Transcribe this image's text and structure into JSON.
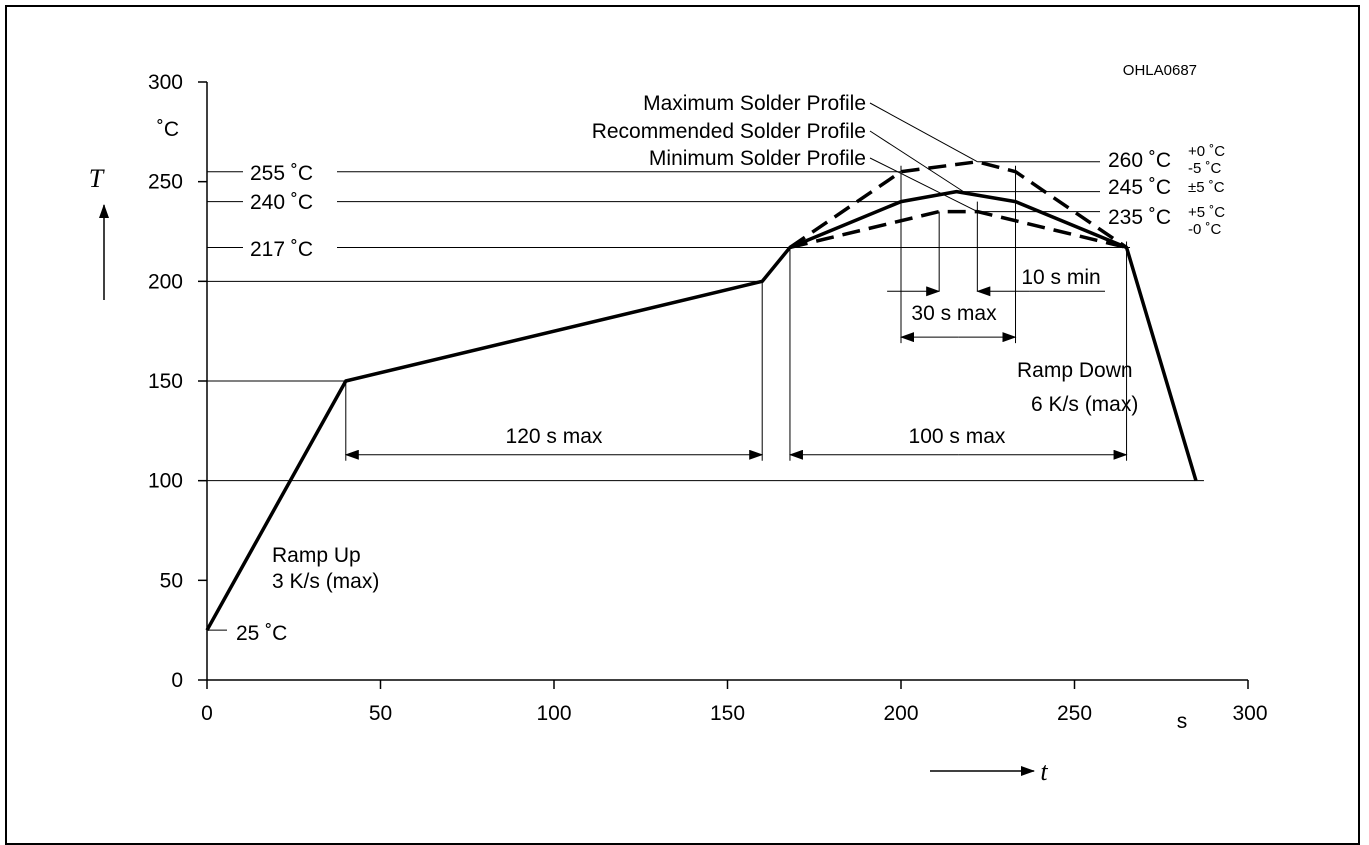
{
  "figure_code": "OHLA0687",
  "chart_data": {
    "type": "line",
    "title": "",
    "xlabel": "t",
    "ylabel": "T",
    "x_unit": "s",
    "y_unit": "˚C",
    "xlim": [
      0,
      300
    ],
    "ylim": [
      0,
      300
    ],
    "x_ticks": [
      0,
      50,
      100,
      150,
      200,
      250,
      300
    ],
    "y_ticks": [
      0,
      50,
      100,
      150,
      200,
      250,
      300
    ],
    "grid": false,
    "series": [
      {
        "name": "Recommended Solder Profile",
        "style": "solid",
        "x": [
          0,
          40,
          160,
          168,
          200,
          216,
          233,
          265,
          285
        ],
        "y": [
          25,
          150,
          200,
          217,
          240,
          245,
          240,
          217,
          100
        ]
      },
      {
        "name": "Maximum Solder Profile",
        "style": "dashed",
        "x": [
          168,
          200,
          222,
          233,
          265
        ],
        "y": [
          217,
          255,
          260,
          255,
          217
        ]
      },
      {
        "name": "Minimum Solder Profile",
        "style": "dashed",
        "x": [
          168,
          211,
          222,
          265
        ],
        "y": [
          217,
          235,
          235,
          217
        ]
      }
    ],
    "temperature_labels": {
      "t25": "25 ˚C",
      "t217": "217 ˚C",
      "t240": "240 ˚C",
      "t255": "255 ˚C",
      "t260": "260 ˚C",
      "t260_tol_plus": "+0 ˚C",
      "t260_tol_minus": "-5 ˚C",
      "t245": "245 ˚C",
      "t245_tol": "±5 ˚C",
      "t235": "235 ˚C",
      "t235_tol_plus": "+5 ˚C",
      "t235_tol_minus": "-0 ˚C"
    },
    "annotations": {
      "ramp_up_line1": "Ramp Up",
      "ramp_up_line2": "3 K/s (max)",
      "ramp_down_line1": "Ramp Down",
      "ramp_down_line2": "6 K/s (max)",
      "preheat_duration": "120 s max",
      "reflow_duration": "100 s max",
      "peak_duration": "30 s max",
      "peak_min": "10 s min",
      "profile_max": "Maximum Solder Profile",
      "profile_rec": "Recommended Solder Profile",
      "profile_min": "Minimum Solder Profile"
    }
  }
}
